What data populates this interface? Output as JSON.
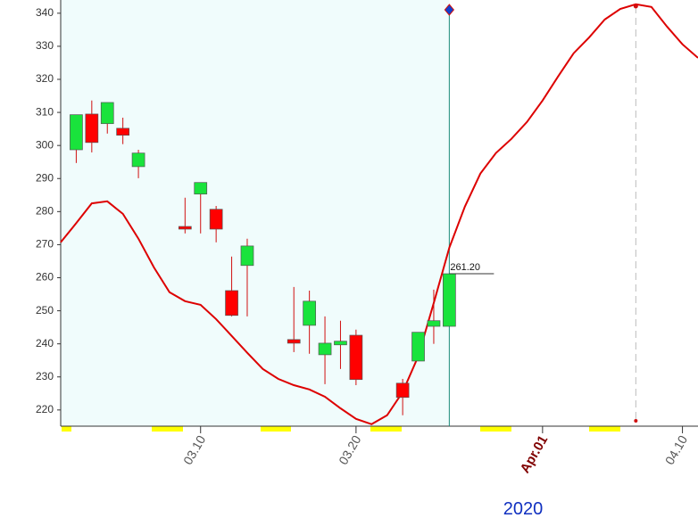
{
  "chart_data": {
    "type": "candlestick",
    "up_color": "#19e33c",
    "down_color": "#ff0000",
    "x": [
      "2020-03-02",
      "2020-03-03",
      "2020-03-04",
      "2020-03-05",
      "2020-03-06",
      "2020-03-09",
      "2020-03-10",
      "2020-03-11",
      "2020-03-12",
      "2020-03-13",
      "2020-03-16",
      "2020-03-17",
      "2020-03-18",
      "2020-03-19",
      "2020-03-20",
      "2020-03-23",
      "2020-03-24",
      "2020-03-25",
      "2020-03-26"
    ],
    "open": [
      298.7,
      309.5,
      306.6,
      305.2,
      293.6,
      275.5,
      285.3,
      280.7,
      256.1,
      263.7,
      241.3,
      245.6,
      236.7,
      239.7,
      242.6,
      228.1,
      234.8,
      245.3,
      245.3
    ],
    "high": [
      309.3,
      313.6,
      313.0,
      308.4,
      298.7,
      284.2,
      288.8,
      281.7,
      266.4,
      271.8,
      257.2,
      256.1,
      248.3,
      247.0,
      244.3,
      229.4,
      243.5,
      256.4,
      261.2
    ],
    "low": [
      294.7,
      297.9,
      303.6,
      300.4,
      290.1,
      273.4,
      273.4,
      270.7,
      248.3,
      248.3,
      237.5,
      237.0,
      227.8,
      232.4,
      227.5,
      218.4,
      234.8,
      240.0,
      245.3
    ],
    "close": [
      309.3,
      300.9,
      313.0,
      303.1,
      297.7,
      274.7,
      288.8,
      274.7,
      248.6,
      269.6,
      240.2,
      252.9,
      240.2,
      240.8,
      229.2,
      223.8,
      243.5,
      247.0,
      261.2
    ],
    "line": {
      "type": "line",
      "color": "#dd0000",
      "x": [
        "2020-03-01",
        "2020-03-02",
        "2020-03-03",
        "2020-03-04",
        "2020-03-05",
        "2020-03-06",
        "2020-03-07",
        "2020-03-08",
        "2020-03-09",
        "2020-03-10",
        "2020-03-11",
        "2020-03-12",
        "2020-03-13",
        "2020-03-14",
        "2020-03-15",
        "2020-03-16",
        "2020-03-17",
        "2020-03-18",
        "2020-03-19",
        "2020-03-20",
        "2020-03-21",
        "2020-03-22",
        "2020-03-23",
        "2020-03-24",
        "2020-03-25",
        "2020-03-26",
        "2020-03-27",
        "2020-03-28",
        "2020-03-29",
        "2020-03-30",
        "2020-03-31",
        "2020-04-01",
        "2020-04-02",
        "2020-04-03",
        "2020-04-04",
        "2020-04-05",
        "2020-04-06",
        "2020-04-07",
        "2020-04-08",
        "2020-04-09",
        "2020-04-10",
        "2020-04-11"
      ],
      "values": [
        270.7,
        276.5,
        282.5,
        283.1,
        279.3,
        271.8,
        263.1,
        255.6,
        252.9,
        251.8,
        247.5,
        242.4,
        237.3,
        232.4,
        229.4,
        227.5,
        226.2,
        224.0,
        220.5,
        217.3,
        215.7,
        218.4,
        225.4,
        236.2,
        252.4,
        269.1,
        281.5,
        291.5,
        297.7,
        302.0,
        307.1,
        313.6,
        320.9,
        327.9,
        332.7,
        338.1,
        341.3,
        342.7,
        341.9,
        336.0,
        330.6,
        326.5
      ]
    },
    "annotation": {
      "text": "261.20",
      "value": 261.2
    },
    "cursor": "2020-03-26",
    "peak_marker": "2020-04-07",
    "xlim": [
      "2020-03-01",
      "2020-04-11"
    ],
    "xticks": [
      {
        "value": "2020-03-10",
        "label": "03.10"
      },
      {
        "value": "2020-03-20",
        "label": "03.20"
      },
      {
        "value": "2020-04-01",
        "label": "Apr.01"
      },
      {
        "value": "2020-04-10",
        "label": "04.10"
      }
    ],
    "ylim": [
      215.1,
      344.0
    ],
    "yticks": [
      220,
      230,
      240,
      250,
      260,
      270,
      280,
      290,
      300,
      310,
      320,
      330,
      340
    ],
    "year_label": "2020"
  }
}
